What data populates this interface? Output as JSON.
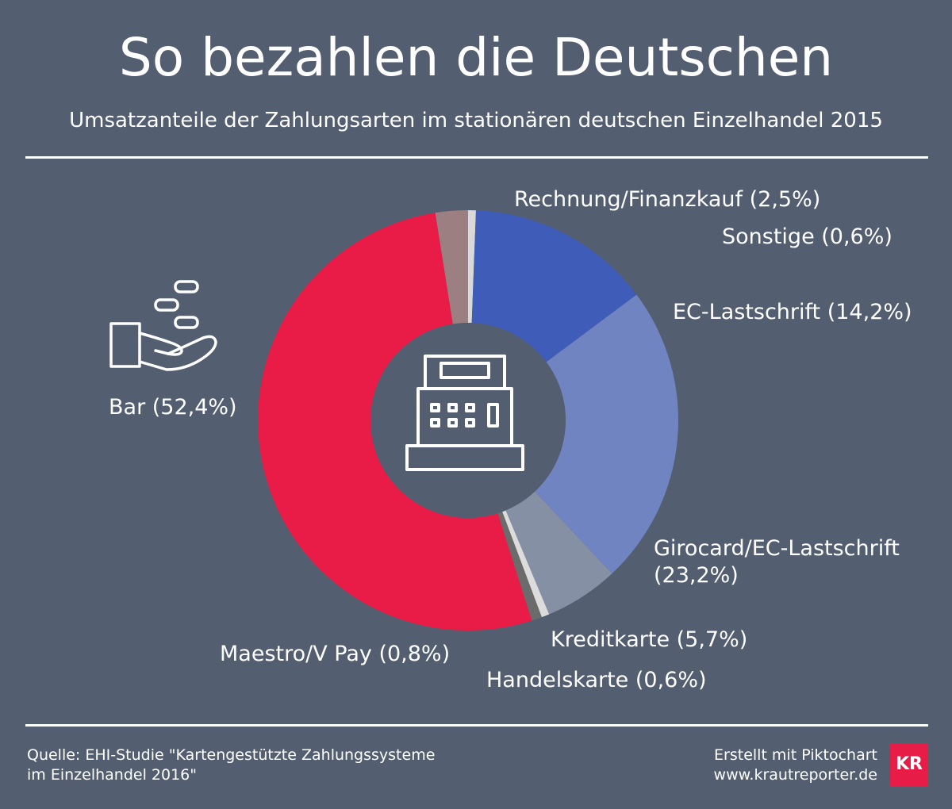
{
  "header": {
    "title": "So bezahlen die Deutschen",
    "subtitle": "Umsatzanteile der Zahlungsarten im stationären deutschen Einzelhandel 2015"
  },
  "chart_data": {
    "type": "pie",
    "title": "So bezahlen die Deutschen",
    "subtitle": "Umsatzanteile der Zahlungsarten im stationären deutschen Einzelhandel 2015",
    "donut": true,
    "center_icon": "cash-register-icon",
    "unit": "%",
    "slices": [
      {
        "label": "Rechnung/Finanzkauf (2,5%)",
        "name": "Rechnung/Finanzkauf",
        "value": 2.5,
        "color": "#9c7f80"
      },
      {
        "label": "Sonstige (0,6%)",
        "name": "Sonstige",
        "value": 0.6,
        "color": "#d9d9d9"
      },
      {
        "label": "EC-Lastschrift (14,2%)",
        "name": "EC-Lastschrift",
        "value": 14.2,
        "color": "#3f5cb8"
      },
      {
        "label": "Girocard/EC-Lastschrift (23,2%)",
        "name": "Girocard/EC-Lastschrift",
        "value": 23.2,
        "color": "#6f84c1"
      },
      {
        "label": "Kreditkarte (5,7%)",
        "name": "Kreditkarte",
        "value": 5.7,
        "color": "#8690a4"
      },
      {
        "label": "Handelskarte (0,6%)",
        "name": "Handelskarte",
        "value": 0.6,
        "color": "#dcdcdc"
      },
      {
        "label": "Maestro/V Pay (0,8%)",
        "name": "Maestro/V Pay",
        "value": 0.8,
        "color": "#6b6b6b"
      },
      {
        "label": "Bar (52,4%)",
        "name": "Bar",
        "value": 52.4,
        "color": "#e81c47"
      }
    ],
    "bar_icon": "hand-with-coins-icon"
  },
  "footer": {
    "source_line1": "Quelle: EHI-Studie \"Kartengestützte Zahlungssysteme",
    "source_line2": "im Einzelhandel 2016\"",
    "credit_line1": "Erstellt mit Piktochart",
    "credit_line2": "www.krautreporter.de",
    "logo_text": "KR",
    "logo_color": "#e71d48"
  }
}
